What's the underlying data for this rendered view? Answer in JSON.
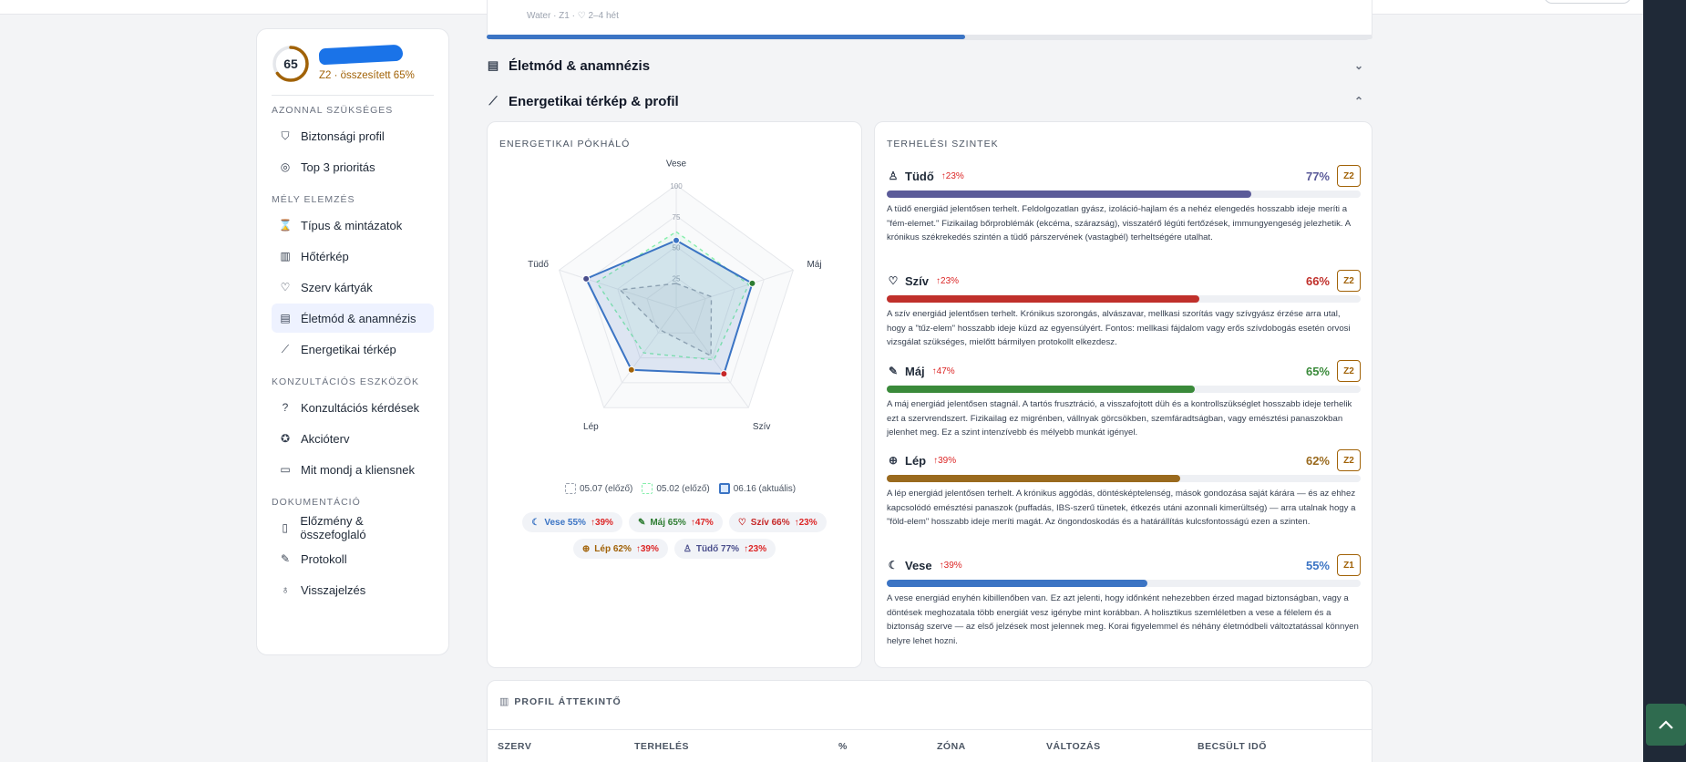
{
  "profile": {
    "score": "65",
    "zone_text": "Z2 · összesített 65%"
  },
  "prev_card": {
    "text": "Water · Z1 · ♡ 2–4 hét",
    "progress": 0.54
  },
  "sidebar": {
    "sections": [
      {
        "title": "AZONNAL SZÜKSÉGES",
        "items": [
          {
            "label": "Biztonsági profil",
            "icon": "shield-icon"
          },
          {
            "label": "Top 3 prioritás",
            "icon": "target-icon"
          }
        ]
      },
      {
        "title": "MÉLY ELEMZÉS",
        "items": [
          {
            "label": "Típus & mintázatok",
            "icon": "hourglass-icon"
          },
          {
            "label": "Hőtérkép",
            "icon": "chart-icon"
          },
          {
            "label": "Szerv kártyák",
            "icon": "heart-icon"
          },
          {
            "label": "Életmód & anamnézis",
            "icon": "clipboard-icon",
            "active": true
          },
          {
            "label": "Energetikai térkép",
            "icon": "trend-icon"
          }
        ]
      },
      {
        "title": "KONZULTÁCIÓS ESZKÖZÖK",
        "items": [
          {
            "label": "Konzultációs kérdések",
            "icon": "question-icon"
          },
          {
            "label": "Akcióterv",
            "icon": "award-icon"
          },
          {
            "label": "Mit mondj a kliensnek",
            "icon": "message-icon"
          }
        ]
      },
      {
        "title": "DOKUMENTÁCIÓ",
        "items": [
          {
            "label": "Előzmény & összefoglaló",
            "icon": "book-icon"
          },
          {
            "label": "Protokoll",
            "icon": "pen-icon"
          },
          {
            "label": "Visszajelzés",
            "icon": "bulb-icon"
          }
        ]
      }
    ]
  },
  "sections": {
    "lifestyle": "Életmód & anamnézis",
    "energy": "Energetikai térkép & profil"
  },
  "radar": {
    "title": "ENERGETIKAI PÓKHÁLÓ",
    "axes": [
      "Vese",
      "Máj",
      "Szív",
      "Lép",
      "Tüdő"
    ],
    "ticks": [
      "100",
      "75",
      "50",
      "25"
    ],
    "legend": [
      "05.07 (előző)",
      "05.02 (előző)",
      "06.16 (aktuális)"
    ]
  },
  "chart_data": {
    "type": "radar",
    "title": "ENERGETIKAI PÓKHÁLÓ",
    "axes": [
      "Vese",
      "Máj",
      "Szív",
      "Lép",
      "Tüdő"
    ],
    "range": [
      0,
      100
    ],
    "series": [
      {
        "name": "05.07 (előző)",
        "values": [
          20,
          30,
          48,
          22,
          48
        ]
      },
      {
        "name": "05.02 (előző)",
        "values": [
          62,
          62,
          52,
          45,
          68
        ]
      },
      {
        "name": "06.16 (aktuális)",
        "values": [
          55,
          65,
          66,
          62,
          77
        ]
      }
    ],
    "point_colors": [
      "#3b74c4",
      "#2e7d32",
      "#c62828",
      "#a16207",
      "#4a4e8c"
    ]
  },
  "chips": [
    {
      "label": "Vese 55%",
      "change": "↑39%",
      "icon": "☾",
      "color": "#3b74c4"
    },
    {
      "label": "Máj 65%",
      "change": "↑47%",
      "icon": "✎",
      "color": "#2e7d32"
    },
    {
      "label": "Szív 66%",
      "change": "↑23%",
      "icon": "♡",
      "color": "#c62828"
    },
    {
      "label": "Lép 62%",
      "change": "↑39%",
      "icon": "⊕",
      "color": "#a16207"
    },
    {
      "label": "Tüdő 77%",
      "change": "↑23%",
      "icon": "♙",
      "color": "#4a4e8c"
    }
  ],
  "loads_title": "TERHELÉSI SZINTEK",
  "loads": [
    {
      "name": "Tüdő",
      "icon": "♙",
      "change": "↑23%",
      "pct": "77%",
      "value": 0.77,
      "zone": "Z2",
      "color": "#5b5b99",
      "desc": "A tüdő energiád jelentősen terhelt. Feldolgozatlan gyász, izoláció-hajlam és a nehéz elengedés hosszabb ideje meríti a \"fém-elemet.\" Fizikailag bőrproblémák (ekcéma, szárazság), visszatérő légúti fertőzések, immungyengeség jelezhetik. A krónikus székrekedés szintén a tüdő párszervének (vastagbél) terheltségére utalhat."
    },
    {
      "name": "Szív",
      "icon": "♡",
      "change": "↑23%",
      "pct": "66%",
      "value": 0.66,
      "zone": "Z2",
      "color": "#c0302b",
      "desc": "A szív energiád jelentősen terhelt. Krónikus szorongás, alvászavar, mellkasi szorítás vagy szívgyász érzése arra utal, hogy a \"tűz-elem\" hosszabb ideje küzd az egyensúlyért. Fontos: mellkasi fájdalom vagy erős szívdobogás esetén orvosi vizsgálat szükséges, mielőtt bármilyen protokollt elkezdesz."
    },
    {
      "name": "Máj",
      "icon": "✎",
      "change": "↑47%",
      "pct": "65%",
      "value": 0.65,
      "zone": "Z2",
      "color": "#3a8a3a",
      "desc": "A máj energiád jelentősen stagnál. A tartós frusztráció, a visszafojtott düh és a kontrollszükséglet hosszabb ideje terhelik ezt a szervrendszert. Fizikailag ez migrénben, vállnyak görcsökben, szemfáradtságban, vagy emésztési panaszokban jelenhet meg. Ez a szint intenzívebb és mélyebb munkát igényel."
    },
    {
      "name": "Lép",
      "icon": "⊕",
      "change": "↑39%",
      "pct": "62%",
      "value": 0.62,
      "zone": "Z2",
      "color": "#9a6a1e",
      "desc": "A lép energiád jelentősen terhelt. A krónikus aggódás, döntésképtelenség, mások gondozása saját kárára — és az ehhez kapcsolódó emésztési panaszok (puffadás, IBS-szerű tünetek, étkezés utáni azonnali kimerültség) — arra utalnak hogy a \"föld-elem\" hosszabb ideje meríti magát. Az öngondoskodás és a határállítás kulcsfontosságú ezen a szinten."
    },
    {
      "name": "Vese",
      "icon": "☾",
      "change": "↑39%",
      "pct": "55%",
      "value": 0.55,
      "zone": "Z1",
      "color": "#3b74c4",
      "desc": "A vese energiád enyhén kibillenőben van. Ez azt jelenti, hogy időnként nehezebben érzed magad biztonságban, vagy a döntések meghozatala több energiát vesz igénybe mint korábban. A holisztikus szemléletben a vese a félelem és a biztonság szerve — az első jelzések most jelennek meg. Korai figyelemmel és néhány életmódbeli változtatással könnyen helyre lehet hozni."
    }
  ],
  "profile_overview": {
    "title": "PROFIL ÁTTEKINTŐ",
    "columns": [
      "SZERV",
      "TERHELÉS",
      "%",
      "ZÓNA",
      "VÁLTOZÁS",
      "BECSÜLT IDŐ"
    ]
  }
}
